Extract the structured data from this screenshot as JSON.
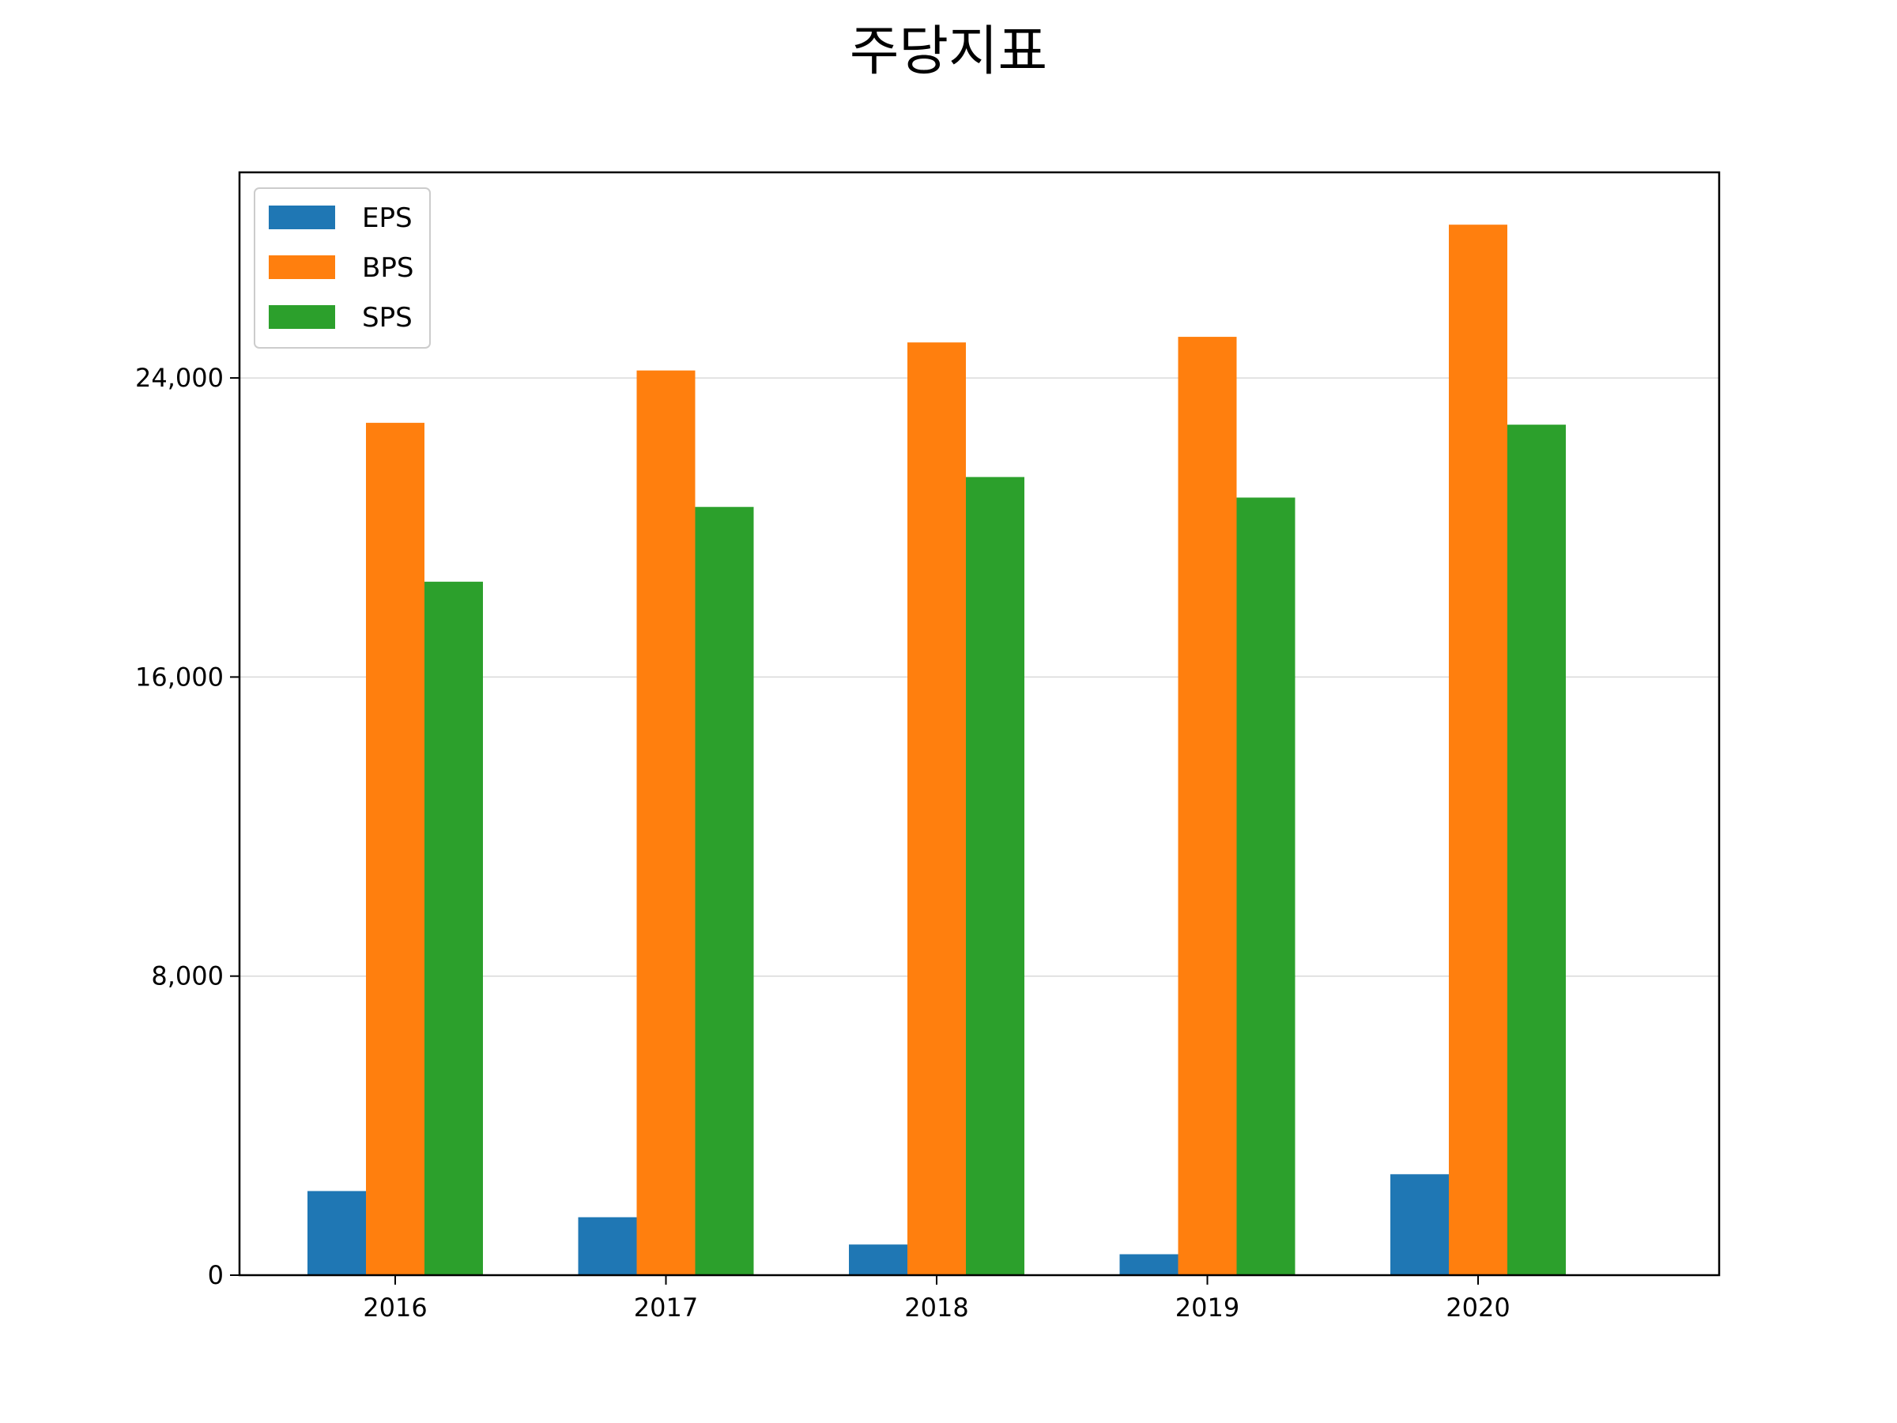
{
  "chart_data": {
    "type": "bar",
    "title": "주당지표",
    "xlabel": "",
    "ylabel": "",
    "categories": [
      "2016",
      "2017",
      "2018",
      "2019",
      "2020"
    ],
    "series": [
      {
        "name": "EPS",
        "color": "#1f77b4",
        "values": [
          2250,
          1550,
          820,
          560,
          2700
        ]
      },
      {
        "name": "BPS",
        "color": "#ff7f0e",
        "values": [
          22800,
          24200,
          24950,
          25100,
          28100
        ]
      },
      {
        "name": "SPS",
        "color": "#2ca02c",
        "values": [
          18550,
          20550,
          21350,
          20800,
          22750
        ]
      }
    ],
    "ylim": [
      0,
      29500
    ],
    "yticks": [
      0,
      8000,
      16000,
      24000
    ],
    "ytick_labels": [
      "0",
      "8,000",
      "16,000",
      "24,000"
    ],
    "grid": {
      "y": true,
      "x": false,
      "color": "#d9d9d9"
    },
    "legend": {
      "position": "top-left"
    }
  }
}
